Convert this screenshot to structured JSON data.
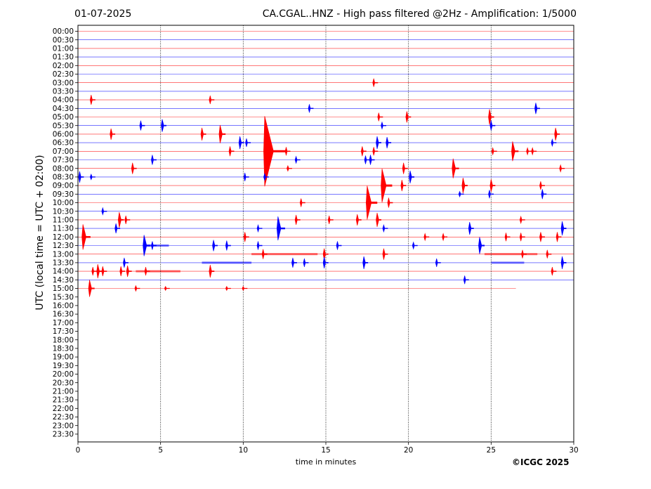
{
  "header": {
    "date": "01-07-2025",
    "title": "CA.CGAL..HNZ - High pass filtered @2Hz - Amplification: 1/5000"
  },
  "footer": {
    "copyright": "©ICGC 2025"
  },
  "colors": {
    "even_trace": "#ff0000",
    "odd_trace": "#0000ff",
    "grid": "#000000"
  },
  "chart_data": {
    "type": "line",
    "chart_kind": "helicorder",
    "xlabel": "time in minutes",
    "ylabel": "UTC (local time = UTC + 02:00)",
    "xlim": [
      0,
      30
    ],
    "x_ticks": [
      0,
      5,
      10,
      15,
      20,
      25,
      30
    ],
    "x_tick_labels": [
      "0",
      "5",
      "10",
      "15",
      "20",
      "25",
      "30"
    ],
    "vertical_gridlines_at": [
      5,
      10,
      15,
      20,
      25
    ],
    "y_tick_labels": [
      "00:00",
      "00:30",
      "01:00",
      "01:30",
      "02:00",
      "02:30",
      "03:00",
      "03:30",
      "04:00",
      "04:30",
      "05:00",
      "05:30",
      "06:00",
      "06:30",
      "07:00",
      "07:30",
      "08:00",
      "08:30",
      "09:00",
      "09:30",
      "10:00",
      "10:30",
      "11:00",
      "11:30",
      "12:00",
      "12:30",
      "13:00",
      "13:30",
      "14:00",
      "14:30",
      "15:00",
      "15:30",
      "16:00",
      "16:30",
      "17:00",
      "17:30",
      "18:00",
      "18:30",
      "19:00",
      "19:30",
      "20:00",
      "20:30",
      "21:00",
      "21:30",
      "22:00",
      "22:30",
      "23:00",
      "23:30"
    ],
    "trace_color_pattern": [
      "red",
      "blue"
    ],
    "last_row_end_minute": 26.5,
    "rows_with_data": 31,
    "events": [
      {
        "row": "03:00",
        "minute": 17.9,
        "amplitude": 6
      },
      {
        "row": "04:00",
        "minute": 0.8,
        "amplitude": 7
      },
      {
        "row": "04:00",
        "minute": 8.0,
        "amplitude": 6
      },
      {
        "row": "04:30",
        "minute": 14.0,
        "amplitude": 6
      },
      {
        "row": "04:30",
        "minute": 27.7,
        "amplitude": 8
      },
      {
        "row": "05:00",
        "minute": 18.2,
        "amplitude": 6
      },
      {
        "row": "05:00",
        "minute": 19.9,
        "amplitude": 8
      },
      {
        "row": "05:00",
        "minute": 24.9,
        "amplitude": 11
      },
      {
        "row": "05:30",
        "minute": 3.8,
        "amplitude": 7
      },
      {
        "row": "05:30",
        "minute": 5.1,
        "amplitude": 9
      },
      {
        "row": "05:30",
        "minute": 18.4,
        "amplitude": 5
      },
      {
        "row": "05:30",
        "minute": 25.0,
        "amplitude": 7
      },
      {
        "row": "06:00",
        "minute": 2.0,
        "amplitude": 8
      },
      {
        "row": "06:00",
        "minute": 7.5,
        "amplitude": 9
      },
      {
        "row": "06:00",
        "minute": 8.6,
        "amplitude": 13
      },
      {
        "row": "06:00",
        "minute": 28.9,
        "amplitude": 9
      },
      {
        "row": "06:30",
        "minute": 9.8,
        "amplitude": 9
      },
      {
        "row": "06:30",
        "minute": 10.2,
        "amplitude": 6
      },
      {
        "row": "06:30",
        "minute": 18.1,
        "amplitude": 9
      },
      {
        "row": "06:30",
        "minute": 18.7,
        "amplitude": 8
      },
      {
        "row": "06:30",
        "minute": 28.7,
        "amplitude": 5
      },
      {
        "row": "07:00",
        "minute": 9.2,
        "amplitude": 7
      },
      {
        "row": "07:00",
        "minute": 11.3,
        "amplitude": 50
      },
      {
        "row": "07:00",
        "minute": 12.6,
        "amplitude": 6
      },
      {
        "row": "07:00",
        "minute": 17.2,
        "amplitude": 7
      },
      {
        "row": "07:00",
        "minute": 17.9,
        "amplitude": 6
      },
      {
        "row": "07:00",
        "minute": 25.1,
        "amplitude": 5
      },
      {
        "row": "07:00",
        "minute": 26.3,
        "amplitude": 14
      },
      {
        "row": "07:00",
        "minute": 27.2,
        "amplitude": 5
      },
      {
        "row": "07:00",
        "minute": 27.5,
        "amplitude": 5
      },
      {
        "row": "07:30",
        "minute": 4.5,
        "amplitude": 7
      },
      {
        "row": "07:30",
        "minute": 13.2,
        "amplitude": 5
      },
      {
        "row": "07:30",
        "minute": 17.4,
        "amplitude": 6
      },
      {
        "row": "07:30",
        "minute": 17.7,
        "amplitude": 7
      },
      {
        "row": "08:00",
        "minute": 3.3,
        "amplitude": 8
      },
      {
        "row": "08:00",
        "minute": 12.7,
        "amplitude": 4
      },
      {
        "row": "08:00",
        "minute": 19.7,
        "amplitude": 8
      },
      {
        "row": "08:00",
        "minute": 22.7,
        "amplitude": 14
      },
      {
        "row": "08:00",
        "minute": 29.2,
        "amplitude": 5
      },
      {
        "row": "08:30",
        "minute": 0.1,
        "amplitude": 8
      },
      {
        "row": "08:30",
        "minute": 0.8,
        "amplitude": 4
      },
      {
        "row": "08:30",
        "minute": 10.1,
        "amplitude": 6
      },
      {
        "row": "08:30",
        "minute": 11.3,
        "amplitude": 5
      },
      {
        "row": "08:30",
        "minute": 20.1,
        "amplitude": 9
      },
      {
        "row": "09:00",
        "minute": 18.4,
        "amplitude": 24
      },
      {
        "row": "09:00",
        "minute": 19.6,
        "amplitude": 8
      },
      {
        "row": "09:00",
        "minute": 23.3,
        "amplitude": 11
      },
      {
        "row": "09:00",
        "minute": 25.0,
        "amplitude": 9
      },
      {
        "row": "09:00",
        "minute": 28.0,
        "amplitude": 6
      },
      {
        "row": "09:30",
        "minute": 23.1,
        "amplitude": 4
      },
      {
        "row": "09:30",
        "minute": 24.9,
        "amplitude": 6
      },
      {
        "row": "09:30",
        "minute": 28.1,
        "amplitude": 7
      },
      {
        "row": "10:00",
        "minute": 13.5,
        "amplitude": 6
      },
      {
        "row": "10:00",
        "minute": 17.5,
        "amplitude": 24
      },
      {
        "row": "10:00",
        "minute": 18.8,
        "amplitude": 7
      },
      {
        "row": "10:30",
        "minute": 1.5,
        "amplitude": 5
      },
      {
        "row": "11:00",
        "minute": 2.5,
        "amplitude": 11
      },
      {
        "row": "11:00",
        "minute": 2.9,
        "amplitude": 6
      },
      {
        "row": "11:00",
        "minute": 13.2,
        "amplitude": 7
      },
      {
        "row": "11:00",
        "minute": 15.2,
        "amplitude": 6
      },
      {
        "row": "11:00",
        "minute": 16.9,
        "amplitude": 8
      },
      {
        "row": "11:00",
        "minute": 18.1,
        "amplitude": 10
      },
      {
        "row": "11:00",
        "minute": 26.8,
        "amplitude": 5
      },
      {
        "row": "11:30",
        "minute": 2.3,
        "amplitude": 7
      },
      {
        "row": "11:30",
        "minute": 10.9,
        "amplitude": 5
      },
      {
        "row": "11:30",
        "minute": 12.1,
        "amplitude": 17
      },
      {
        "row": "11:30",
        "minute": 18.5,
        "amplitude": 5
      },
      {
        "row": "11:30",
        "minute": 23.7,
        "amplitude": 9
      },
      {
        "row": "11:30",
        "minute": 29.3,
        "amplitude": 10
      },
      {
        "row": "12:00",
        "minute": 0.3,
        "amplitude": 18
      },
      {
        "row": "12:00",
        "minute": 10.1,
        "amplitude": 7
      },
      {
        "row": "12:00",
        "minute": 21.0,
        "amplitude": 5
      },
      {
        "row": "12:00",
        "minute": 22.1,
        "amplitude": 5
      },
      {
        "row": "12:00",
        "minute": 25.9,
        "amplitude": 6
      },
      {
        "row": "12:00",
        "minute": 26.8,
        "amplitude": 6
      },
      {
        "row": "12:00",
        "minute": 28.0,
        "amplitude": 7
      },
      {
        "row": "12:00",
        "minute": 29.0,
        "amplitude": 7
      },
      {
        "row": "12:30",
        "minute": 4.0,
        "amplitude": 15
      },
      {
        "row": "12:30",
        "minute": 4.5,
        "amplitude": 6
      },
      {
        "row": "12:30",
        "minute": 8.2,
        "amplitude": 8
      },
      {
        "row": "12:30",
        "minute": 9.0,
        "amplitude": 7
      },
      {
        "row": "12:30",
        "minute": 10.9,
        "amplitude": 6
      },
      {
        "row": "12:30",
        "minute": 15.7,
        "amplitude": 6
      },
      {
        "row": "12:30",
        "minute": 20.3,
        "amplitude": 5
      },
      {
        "row": "12:30",
        "minute": 24.3,
        "amplitude": 12
      },
      {
        "row": "13:00",
        "minute": 11.2,
        "amplitude": 7
      },
      {
        "row": "13:00",
        "minute": 14.9,
        "amplitude": 8
      },
      {
        "row": "13:00",
        "minute": 18.5,
        "amplitude": 8
      },
      {
        "row": "13:00",
        "minute": 26.9,
        "amplitude": 6
      },
      {
        "row": "13:00",
        "minute": 28.4,
        "amplitude": 6
      },
      {
        "row": "13:30",
        "minute": 2.8,
        "amplitude": 7
      },
      {
        "row": "13:30",
        "minute": 13.0,
        "amplitude": 7
      },
      {
        "row": "13:30",
        "minute": 13.7,
        "amplitude": 6
      },
      {
        "row": "13:30",
        "minute": 14.9,
        "amplitude": 8
      },
      {
        "row": "13:30",
        "minute": 17.3,
        "amplitude": 9
      },
      {
        "row": "13:30",
        "minute": 21.7,
        "amplitude": 6
      },
      {
        "row": "13:30",
        "minute": 29.3,
        "amplitude": 9
      },
      {
        "row": "14:00",
        "minute": 0.9,
        "amplitude": 6
      },
      {
        "row": "14:00",
        "minute": 1.2,
        "amplitude": 10
      },
      {
        "row": "14:00",
        "minute": 1.5,
        "amplitude": 7
      },
      {
        "row": "14:00",
        "minute": 2.6,
        "amplitude": 7
      },
      {
        "row": "14:00",
        "minute": 3.0,
        "amplitude": 8
      },
      {
        "row": "14:00",
        "minute": 4.1,
        "amplitude": 6
      },
      {
        "row": "14:00",
        "minute": 8.0,
        "amplitude": 9
      },
      {
        "row": "14:00",
        "minute": 28.7,
        "amplitude": 6
      },
      {
        "row": "14:30",
        "minute": 23.4,
        "amplitude": 6
      },
      {
        "row": "15:00",
        "minute": 0.7,
        "amplitude": 12
      },
      {
        "row": "15:00",
        "minute": 3.5,
        "amplitude": 4
      },
      {
        "row": "15:00",
        "minute": 5.3,
        "amplitude": 3
      },
      {
        "row": "15:00",
        "minute": 9.0,
        "amplitude": 3
      },
      {
        "row": "15:00",
        "minute": 10.0,
        "amplitude": 3
      }
    ]
  }
}
